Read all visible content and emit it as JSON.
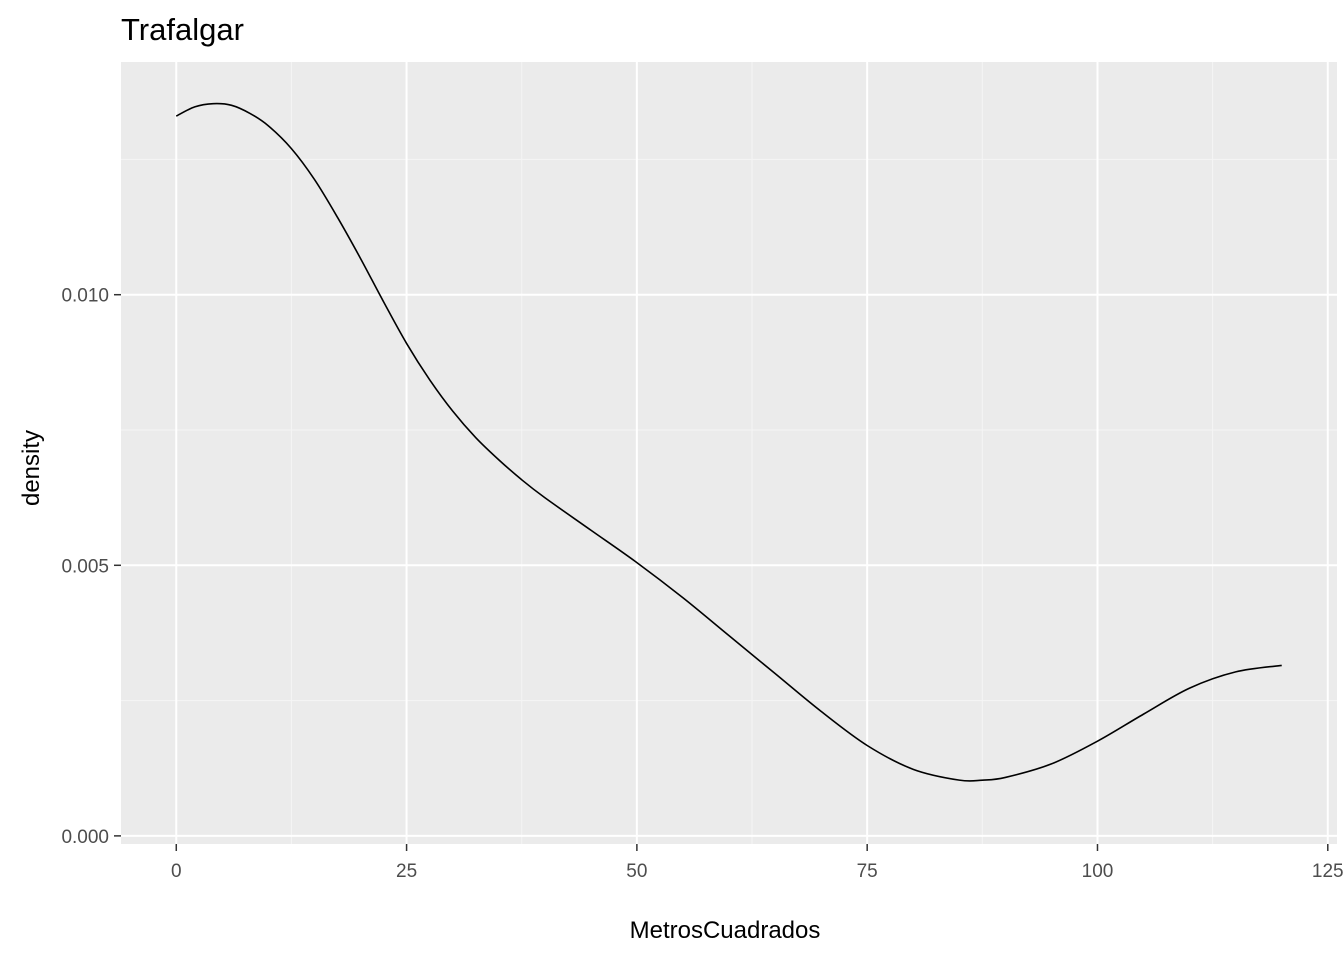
{
  "chart_data": {
    "type": "line",
    "title": "Trafalgar",
    "xlabel": "MetrosCuadrados",
    "ylabel": "density",
    "xlim": [
      -6,
      126
    ],
    "ylim": [
      -0.00015,
      0.0143
    ],
    "x_ticks": [
      0,
      25,
      50,
      75,
      100,
      125
    ],
    "x_tick_labels": [
      "0",
      "25",
      "50",
      "75",
      "100",
      "125"
    ],
    "y_ticks": [
      0.0,
      0.005,
      0.01
    ],
    "y_tick_labels": [
      "0.000",
      "0.005",
      "0.010"
    ],
    "grid": true,
    "legend": "none",
    "colors": {
      "panel_background": "#ebebeb",
      "grid_major": "#ffffff",
      "grid_minor": "#f5f5f5",
      "line": "#000000",
      "tick_label": "#4d4d4d"
    },
    "series": [
      {
        "x": [
          0,
          2,
          4,
          6,
          8,
          10,
          12.5,
          15,
          17.5,
          20,
          22.5,
          25,
          27.5,
          30,
          32.5,
          35,
          37.5,
          40,
          45,
          50,
          55,
          60,
          65,
          70,
          75,
          80,
          85,
          87.5,
          90,
          95,
          100,
          105,
          110,
          115,
          120
        ],
        "values": [
          0.0133,
          0.01347,
          0.01353,
          0.0135,
          0.01335,
          0.01312,
          0.0127,
          0.01213,
          0.01143,
          0.01067,
          0.00987,
          0.0091,
          0.00843,
          0.00785,
          0.00736,
          0.00695,
          0.00658,
          0.00625,
          0.00565,
          0.00505,
          0.0044,
          0.0037,
          0.003,
          0.0023,
          0.00167,
          0.00123,
          0.00103,
          0.00103,
          0.00108,
          0.00133,
          0.00175,
          0.00225,
          0.00273,
          0.00303,
          0.00315
        ]
      }
    ]
  }
}
